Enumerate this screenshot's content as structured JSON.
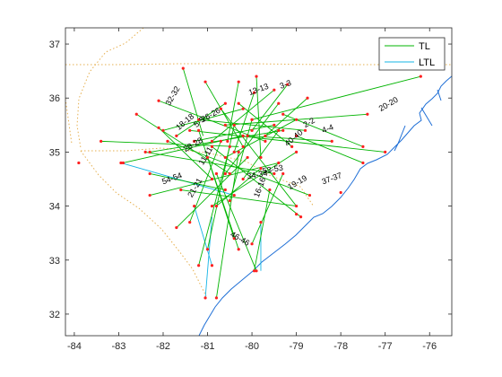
{
  "chart_data": {
    "type": "line",
    "title": "",
    "xlabel": "",
    "ylabel": "",
    "xlim": [
      -84.2,
      -75.5
    ],
    "ylim": [
      31.6,
      37.3
    ],
    "x_ticks": [
      -84,
      -83,
      -82,
      -81,
      -80,
      -79,
      -78,
      -77,
      -76
    ],
    "y_ticks": [
      32,
      33,
      34,
      35,
      36,
      37
    ],
    "x_tick_labels": [
      "-84",
      "-83",
      "-82",
      "-81",
      "-80",
      "-79",
      "-78",
      "-77",
      "-76"
    ],
    "y_tick_labels": [
      "32",
      "33",
      "34",
      "35",
      "36",
      "37"
    ],
    "grid": false,
    "legend_position": "top-right",
    "colors": {
      "TL": "#00b400",
      "LTL": "#14b4e6",
      "nodes": "#ff2020",
      "coast": "#1f6fd6",
      "boundary": "#e6b050",
      "axes": "#262626"
    },
    "series": [
      {
        "name": "TL",
        "segments": [
          [
            [
              -81.55,
              36.55
            ],
            [
              -81.1,
              35.3
            ]
          ],
          [
            [
              -81.05,
              36.3
            ],
            [
              -80.2,
              35.1
            ]
          ],
          [
            [
              -80.3,
              36.3
            ],
            [
              -80.55,
              35.2
            ]
          ],
          [
            [
              -79.95,
              36.1
            ],
            [
              -80.4,
              35.0
            ]
          ],
          [
            [
              -79.5,
              36.15
            ],
            [
              -80.9,
              35.2
            ]
          ],
          [
            [
              -79.2,
              36.25
            ],
            [
              -80.0,
              35.4
            ]
          ],
          [
            [
              -79.9,
              36.4
            ],
            [
              -79.8,
              34.9
            ]
          ],
          [
            [
              -78.75,
              36.0
            ],
            [
              -79.7,
              35.3
            ]
          ],
          [
            [
              -76.2,
              36.4
            ],
            [
              -80.0,
              35.6
            ]
          ],
          [
            [
              -77.4,
              35.7
            ],
            [
              -80.6,
              35.5
            ]
          ],
          [
            [
              -78.2,
              35.2
            ],
            [
              -80.1,
              35.3
            ]
          ],
          [
            [
              -77.5,
              35.1
            ],
            [
              -79.3,
              35.7
            ]
          ],
          [
            [
              -77.0,
              35.0
            ],
            [
              -81.4,
              35.4
            ]
          ],
          [
            [
              -77.5,
              34.8
            ],
            [
              -79.0,
              35.3
            ]
          ],
          [
            [
              -82.6,
              35.7
            ],
            [
              -80.5,
              34.6
            ]
          ],
          [
            [
              -82.1,
              35.95
            ],
            [
              -79.7,
              35.2
            ]
          ],
          [
            [
              -83.4,
              35.2
            ],
            [
              -80.3,
              35.1
            ]
          ],
          [
            [
              -82.9,
              34.8
            ],
            [
              -80.2,
              35.3
            ]
          ],
          [
            [
              -82.4,
              35.0
            ],
            [
              -79.5,
              34.6
            ]
          ],
          [
            [
              -82.3,
              34.6
            ],
            [
              -80.6,
              34.3
            ]
          ],
          [
            [
              -82.3,
              34.2
            ],
            [
              -79.4,
              34.8
            ]
          ],
          [
            [
              -82.1,
              35.45
            ],
            [
              -80.9,
              34.5
            ]
          ],
          [
            [
              -81.9,
              35.2
            ],
            [
              -78.7,
              34.2
            ]
          ],
          [
            [
              -81.2,
              35.4
            ],
            [
              -80.3,
              33.2
            ]
          ],
          [
            [
              -81.0,
              34.9
            ],
            [
              -80.4,
              33.4
            ]
          ],
          [
            [
              -80.8,
              34.6
            ],
            [
              -79.9,
              32.8
            ]
          ],
          [
            [
              -80.7,
              35.2
            ],
            [
              -81.4,
              33.7
            ]
          ],
          [
            [
              -80.5,
              35.1
            ],
            [
              -81.2,
              32.9
            ]
          ],
          [
            [
              -80.4,
              35.5
            ],
            [
              -81.0,
              33.2
            ]
          ],
          [
            [
              -80.3,
              35.0
            ],
            [
              -80.8,
              32.3
            ]
          ],
          [
            [
              -80.1,
              34.9
            ],
            [
              -81.7,
              33.6
            ]
          ],
          [
            [
              -79.8,
              34.7
            ],
            [
              -80.8,
              34.0
            ]
          ],
          [
            [
              -79.6,
              34.3
            ],
            [
              -79.95,
              32.8
            ]
          ],
          [
            [
              -79.3,
              34.6
            ],
            [
              -80.0,
              33.3
            ]
          ],
          [
            [
              -79.0,
              35.0
            ],
            [
              -80.9,
              34.0
            ]
          ],
          [
            [
              -79.4,
              35.4
            ],
            [
              -80.2,
              34.5
            ]
          ],
          [
            [
              -79.0,
              35.6
            ],
            [
              -80.6,
              34.9
            ]
          ],
          [
            [
              -78.8,
              35.4
            ],
            [
              -81.2,
              35.6
            ]
          ],
          [
            [
              -80.6,
              35.9
            ],
            [
              -81.7,
              35.3
            ]
          ],
          [
            [
              -80.2,
              35.8
            ],
            [
              -82.0,
              35.4
            ]
          ],
          [
            [
              -81.6,
              34.3
            ],
            [
              -79.0,
              34.0
            ]
          ],
          [
            [
              -80.9,
              35.1
            ],
            [
              -78.9,
              33.8
            ]
          ],
          [
            [
              -80.7,
              35.8
            ],
            [
              -79.0,
              34.0
            ]
          ],
          [
            [
              -81.3,
              35.2
            ],
            [
              -79.5,
              35.5
            ]
          ],
          [
            [
              -82.3,
              35.0
            ],
            [
              -79.3,
              35.4
            ]
          ],
          [
            [
              -79.1,
              35.1
            ],
            [
              -80.3,
              35.9
            ]
          ],
          [
            [
              -80.0,
              35.6
            ],
            [
              -80.5,
              34.1
            ]
          ],
          [
            [
              -80.6,
              34.6
            ],
            [
              -79.4,
              35.9
            ]
          ]
        ]
      },
      {
        "name": "LTL",
        "segments": [
          [
            [
              -82.95,
              34.8
            ],
            [
              -80.4,
              34.2
            ]
          ],
          [
            [
              -81.3,
              34.0
            ],
            [
              -80.9,
              32.9
            ]
          ],
          [
            [
              -79.8,
              33.7
            ],
            [
              -79.8,
              32.8
            ]
          ],
          [
            [
              -80.9,
              33.8
            ],
            [
              -81.05,
              32.3
            ]
          ]
        ]
      }
    ],
    "node_labels": [
      {
        "text": "3-3",
        "x": -79.35,
        "y": 36.17,
        "angle": -20
      },
      {
        "text": "13-13",
        "x": -80.05,
        "y": 36.05,
        "angle": -20
      },
      {
        "text": "32-32",
        "x": -81.85,
        "y": 35.85,
        "angle": -60
      },
      {
        "text": "26-26",
        "x": -81.1,
        "y": 35.55,
        "angle": -30
      },
      {
        "text": "20-20",
        "x": -77.1,
        "y": 35.75,
        "angle": -30
      },
      {
        "text": "18-18",
        "x": -81.65,
        "y": 35.4,
        "angle": -40
      },
      {
        "text": "2-2",
        "x": -78.8,
        "y": 35.45,
        "angle": -30
      },
      {
        "text": "4-4",
        "x": -78.4,
        "y": 35.35,
        "angle": -20
      },
      {
        "text": "5-5",
        "x": -81.25,
        "y": 35.45,
        "angle": -40
      },
      {
        "text": "40-40",
        "x": -79.2,
        "y": 35.1,
        "angle": -40
      },
      {
        "text": "28-28",
        "x": -81.5,
        "y": 35.0,
        "angle": -30
      },
      {
        "text": "11-11",
        "x": -81.1,
        "y": 34.75,
        "angle": -60
      },
      {
        "text": "54-54",
        "x": -82.0,
        "y": 34.4,
        "angle": -20
      },
      {
        "text": "34-34",
        "x": -80.1,
        "y": 34.5,
        "angle": -10
      },
      {
        "text": "53-53",
        "x": -79.75,
        "y": 34.6,
        "angle": -10
      },
      {
        "text": "37-37",
        "x": -78.4,
        "y": 34.4,
        "angle": -20
      },
      {
        "text": "19-19",
        "x": -79.15,
        "y": 34.3,
        "angle": -30
      },
      {
        "text": "16-16",
        "x": -79.85,
        "y": 34.15,
        "angle": -70
      },
      {
        "text": "21-21",
        "x": -81.35,
        "y": 34.15,
        "angle": -60
      },
      {
        "text": "46-46",
        "x": -80.5,
        "y": 33.45,
        "angle": 30
      }
    ],
    "nodes": [
      [
        -81.55,
        36.55
      ],
      [
        -81.05,
        36.3
      ],
      [
        -80.3,
        36.3
      ],
      [
        -79.95,
        36.1
      ],
      [
        -79.5,
        36.15
      ],
      [
        -79.2,
        36.25
      ],
      [
        -79.9,
        36.4
      ],
      [
        -78.75,
        36.0
      ],
      [
        -76.2,
        36.4
      ],
      [
        -77.4,
        35.7
      ],
      [
        -78.2,
        35.2
      ],
      [
        -77.5,
        35.1
      ],
      [
        -77.0,
        35.0
      ],
      [
        -77.5,
        34.8
      ],
      [
        -82.6,
        35.7
      ],
      [
        -82.1,
        35.95
      ],
      [
        -83.4,
        35.2
      ],
      [
        -82.9,
        34.8
      ],
      [
        -82.4,
        35.0
      ],
      [
        -82.3,
        34.6
      ],
      [
        -82.3,
        34.2
      ],
      [
        -82.1,
        35.45
      ],
      [
        -81.9,
        35.2
      ],
      [
        -81.2,
        35.4
      ],
      [
        -81.0,
        34.9
      ],
      [
        -80.8,
        34.6
      ],
      [
        -80.7,
        35.2
      ],
      [
        -80.5,
        35.1
      ],
      [
        -80.4,
        35.5
      ],
      [
        -80.3,
        35.0
      ],
      [
        -80.1,
        34.9
      ],
      [
        -79.8,
        34.7
      ],
      [
        -79.6,
        34.3
      ],
      [
        -79.3,
        34.6
      ],
      [
        -79.0,
        35.0
      ],
      [
        -79.4,
        35.4
      ],
      [
        -79.0,
        35.6
      ],
      [
        -78.8,
        35.4
      ],
      [
        -80.6,
        35.9
      ],
      [
        -80.2,
        35.8
      ],
      [
        -81.6,
        34.3
      ],
      [
        -80.9,
        35.1
      ],
      [
        -80.7,
        35.8
      ],
      [
        -81.3,
        35.2
      ],
      [
        -82.3,
        35.0
      ],
      [
        -79.1,
        35.1
      ],
      [
        -80.0,
        35.6
      ],
      [
        -80.6,
        34.6
      ],
      [
        -80.2,
        35.1
      ],
      [
        -80.55,
        35.2
      ],
      [
        -80.4,
        35.0
      ],
      [
        -80.9,
        35.2
      ],
      [
        -80.0,
        35.4
      ],
      [
        -79.8,
        34.9
      ],
      [
        -79.7,
        35.3
      ],
      [
        -80.0,
        35.6
      ],
      [
        -80.6,
        35.5
      ],
      [
        -80.1,
        35.3
      ],
      [
        -79.3,
        35.7
      ],
      [
        -81.4,
        35.4
      ],
      [
        -79.0,
        35.3
      ],
      [
        -80.5,
        34.6
      ],
      [
        -79.7,
        35.2
      ],
      [
        -80.2,
        35.3
      ],
      [
        -79.5,
        34.6
      ],
      [
        -80.6,
        34.3
      ],
      [
        -79.4,
        34.8
      ],
      [
        -80.9,
        34.5
      ],
      [
        -78.7,
        34.2
      ],
      [
        -80.3,
        33.2
      ],
      [
        -80.4,
        33.4
      ],
      [
        -79.9,
        32.8
      ],
      [
        -81.4,
        33.7
      ],
      [
        -81.2,
        32.9
      ],
      [
        -81.0,
        33.2
      ],
      [
        -80.8,
        32.3
      ],
      [
        -81.7,
        33.6
      ],
      [
        -80.8,
        34.0
      ],
      [
        -79.95,
        32.8
      ],
      [
        -80.0,
        33.3
      ],
      [
        -80.9,
        34.0
      ],
      [
        -80.2,
        34.5
      ],
      [
        -80.6,
        34.9
      ],
      [
        -81.2,
        35.6
      ],
      [
        -81.7,
        35.3
      ],
      [
        -82.0,
        35.4
      ],
      [
        -79.0,
        34.0
      ],
      [
        -78.9,
        33.8
      ],
      [
        -79.5,
        35.5
      ],
      [
        -79.3,
        35.4
      ],
      [
        -80.3,
        35.9
      ],
      [
        -80.5,
        34.1
      ],
      [
        -79.4,
        35.9
      ],
      [
        -82.95,
        34.8
      ],
      [
        -80.4,
        34.2
      ],
      [
        -81.3,
        34.0
      ],
      [
        -80.9,
        32.9
      ],
      [
        -79.8,
        33.7
      ],
      [
        -81.05,
        32.3
      ],
      [
        -83.9,
        34.8
      ],
      [
        -78.0,
        34.25
      ],
      [
        -79.0,
        33.85
      ]
    ]
  },
  "legend": {
    "entries": [
      {
        "label": "TL",
        "series": "TL"
      },
      {
        "label": "LTL",
        "series": "LTL"
      }
    ]
  }
}
